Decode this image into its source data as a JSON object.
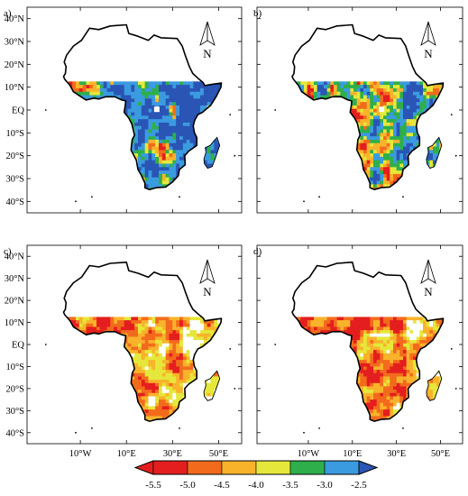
{
  "panels": [
    {
      "id": "a",
      "label": "a)",
      "show_lat_labels": true,
      "show_lon_labels": false,
      "mode": "cool"
    },
    {
      "id": "b",
      "label": "b)",
      "show_lat_labels": false,
      "show_lon_labels": false,
      "mode": "mixed"
    },
    {
      "id": "c",
      "label": "c)",
      "show_lat_labels": true,
      "show_lon_labels": true,
      "mode": "warm"
    },
    {
      "id": "d",
      "label": "d)",
      "show_lat_labels": false,
      "show_lon_labels": true,
      "mode": "hot"
    }
  ],
  "lat_labels": [
    "40°N",
    "30°N",
    "20°N",
    "10°N",
    "EQ",
    "10°S",
    "20°S",
    "30°S",
    "40°S"
  ],
  "lon_labels": [
    "10°W",
    "10°E",
    "30°E",
    "50°E"
  ],
  "north_arrow_label": "N",
  "colorbar": {
    "ticks": [
      "-5.5",
      "-5.0",
      "-4.5",
      "-4.0",
      "-3.5",
      "-3.0",
      "-2.5"
    ],
    "colors": [
      "#e41e1e",
      "#f26b1d",
      "#f9b32b",
      "#e5e83a",
      "#2eaf4b",
      "#3b9be0",
      "#2a55b5"
    ]
  }
}
